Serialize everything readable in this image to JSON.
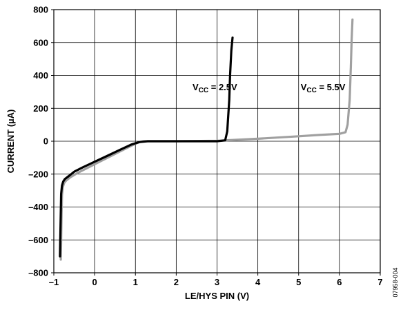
{
  "chart_data": {
    "type": "line",
    "xlabel": "LE/HYS PIN (V)",
    "ylabel": "CURRENT (µA)",
    "xlim": [
      -1,
      7
    ],
    "ylim": [
      -800,
      800
    ],
    "xticks": [
      -1,
      0,
      1,
      2,
      3,
      4,
      5,
      6,
      7
    ],
    "yticks": [
      -800,
      -600,
      -400,
      -200,
      0,
      200,
      400,
      600,
      800
    ],
    "xtick_labels": [
      "–1",
      "0",
      "1",
      "2",
      "3",
      "4",
      "5",
      "6",
      "7"
    ],
    "ytick_labels": [
      "–800",
      "–600",
      "–400",
      "–200",
      "0",
      "200",
      "400",
      "600",
      "800"
    ],
    "grid": true,
    "series": [
      {
        "color": "#a0a0a0",
        "x": [
          -0.83,
          -0.82,
          -0.81,
          -0.8,
          -0.78,
          -0.75,
          -0.7,
          -0.6,
          -0.4,
          -0.2,
          0,
          0.2,
          0.4,
          0.6,
          0.8,
          1.0,
          1.1,
          1.2,
          1.4,
          2.0,
          3.0,
          4.0,
          5.0,
          5.5,
          6.0,
          6.15,
          6.2,
          6.25,
          6.28,
          6.3,
          6.32
        ],
        "y": [
          -720,
          -600,
          -450,
          -330,
          -280,
          -255,
          -240,
          -220,
          -190,
          -165,
          -140,
          -115,
          -90,
          -65,
          -40,
          -15,
          -5,
          0,
          0,
          0,
          3,
          15,
          30,
          38,
          45,
          55,
          100,
          250,
          450,
          620,
          740
        ]
      },
      {
        "color": "#000000",
        "x": [
          -0.85,
          -0.84,
          -0.83,
          -0.82,
          -0.8,
          -0.77,
          -0.73,
          -0.65,
          -0.5,
          -0.3,
          0,
          0.3,
          0.6,
          0.9,
          1.1,
          1.3,
          2.0,
          3.0,
          3.2,
          3.25,
          3.3,
          3.32,
          3.35,
          3.38
        ],
        "y": [
          -700,
          -560,
          -430,
          -320,
          -270,
          -245,
          -230,
          -215,
          -185,
          -160,
          -125,
          -90,
          -55,
          -20,
          -5,
          0,
          0,
          0,
          5,
          60,
          250,
          400,
          550,
          630
        ]
      }
    ],
    "annotations": [
      {
        "main": "V",
        "sub": "CC",
        "rest": " = 2.5V",
        "x": 2.4,
        "y": 310
      },
      {
        "main": "V",
        "sub": "CC",
        "rest": " = 5.5V",
        "x": 5.05,
        "y": 310
      }
    ]
  },
  "figure_id": "07958-004"
}
